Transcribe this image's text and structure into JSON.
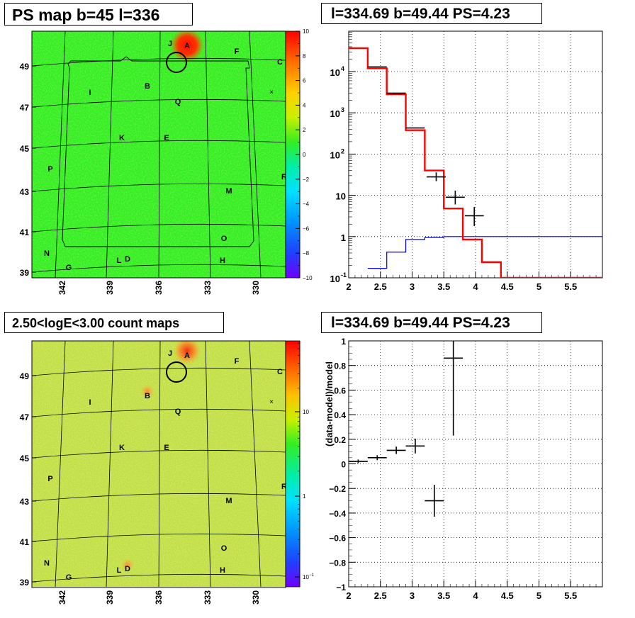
{
  "titles": {
    "map_top": "PS map b=45 l=336",
    "spectrum": "l=334.69 b=49.44 PS=4.23",
    "map_bottom": "2.50<logE<3.00 count maps",
    "residual": "l=334.69 b=49.44 PS=4.23"
  },
  "colors": {
    "model_red": "#ff0000",
    "background_blue": "#0000ff",
    "map_green": "#33ee22",
    "count_map_bg": "#bfe04a",
    "source_red": "#ff2200",
    "grid_black": "#000000"
  },
  "source_labels": [
    "J",
    "A",
    "F",
    "C",
    "I",
    "B",
    "Q",
    "K",
    "E",
    "P",
    "R",
    "M",
    "O",
    "N",
    "G",
    "L",
    "D",
    "H"
  ],
  "map_axes": {
    "lon_ticks": [
      "342",
      "339",
      "336",
      "333",
      "330"
    ],
    "lat_ticks": [
      "49",
      "47",
      "45",
      "43",
      "41",
      "39"
    ]
  },
  "colorbar_top": {
    "scale": "linear",
    "ticks": [
      "10",
      "8",
      "6",
      "4",
      "2",
      "0",
      "−2",
      "−4",
      "−6",
      "−8",
      "−10"
    ]
  },
  "colorbar_bottom": {
    "scale": "log",
    "ticks": [
      "10",
      "1",
      "10"
    ],
    "tick_exponent": "−1"
  },
  "chart_data": [
    {
      "type": "map",
      "panel": "PS map",
      "x_ticks": [
        342,
        339,
        336,
        333,
        330
      ],
      "y_ticks": [
        49,
        47,
        45,
        43,
        41,
        39
      ],
      "color_range": [
        -10,
        10
      ],
      "marked_source": "A"
    },
    {
      "type": "line",
      "panel": "spectrum",
      "yscale": "log",
      "xlim": [
        2,
        6
      ],
      "ylim": [
        0.1,
        50000
      ],
      "x_ticks": [
        2,
        2.5,
        3,
        3.5,
        4,
        4.5,
        5,
        5.5
      ],
      "y_ticks": [
        "10^-1",
        "1",
        "10",
        "10^2",
        "10^3",
        "10^4"
      ],
      "grid": true,
      "data_points": [
        {
          "x": 2.45,
          "y": 13000,
          "xerr": 0.15
        },
        {
          "x": 2.75,
          "y": 3000,
          "xerr": 0.15
        },
        {
          "x": 3.05,
          "y": 430,
          "xerr": 0.15
        },
        {
          "x": 3.38,
          "y": 28,
          "xerr": 0.15,
          "yerr": [
            22,
            36
          ]
        },
        {
          "x": 3.68,
          "y": 9,
          "xerr": 0.15,
          "yerr": [
            6,
            13
          ]
        },
        {
          "x": 3.98,
          "y": 3.2,
          "xerr": 0.15,
          "yerr": [
            1.8,
            5.2
          ]
        }
      ],
      "model_total": {
        "edges": [
          2.0,
          2.3,
          2.6,
          2.9,
          3.2,
          3.5,
          3.8,
          4.1,
          4.4,
          6.0
        ],
        "values": [
          37000,
          12000,
          2800,
          380,
          40,
          4.8,
          0.85,
          0.24,
          0.1
        ]
      },
      "model_background": {
        "edges": [
          2.3,
          2.6,
          2.9,
          3.2,
          3.5,
          6.0
        ],
        "values": [
          0.17,
          0.42,
          0.85,
          0.95,
          1.0
        ]
      }
    },
    {
      "type": "map",
      "panel": "count map",
      "x_ticks": [
        342,
        339,
        336,
        333,
        330
      ],
      "y_ticks": [
        49,
        47,
        45,
        43,
        41,
        39
      ],
      "color_scale": "log",
      "color_range": [
        0.07,
        30
      ],
      "marked_source": "A"
    },
    {
      "type": "scatter",
      "panel": "residual",
      "ylabel": "(data-model)/model",
      "xlim": [
        2,
        6
      ],
      "ylim": [
        -1,
        1
      ],
      "x_ticks": [
        2,
        2.5,
        3,
        3.5,
        4,
        4.5,
        5,
        5.5
      ],
      "y_ticks": [
        1,
        0.8,
        0.6,
        0.4,
        0.2,
        0,
        -0.2,
        -0.4,
        -0.6,
        -0.8,
        -1
      ],
      "grid": true,
      "data_points": [
        {
          "x": 2.15,
          "y": 0.02,
          "xerr": 0.15,
          "yerr": 0.015
        },
        {
          "x": 2.45,
          "y": 0.05,
          "xerr": 0.15,
          "yerr": 0.02
        },
        {
          "x": 2.75,
          "y": 0.11,
          "xerr": 0.15,
          "yerr": 0.03
        },
        {
          "x": 3.05,
          "y": 0.145,
          "xerr": 0.15,
          "yerr": 0.06
        },
        {
          "x": 3.35,
          "y": -0.3,
          "xerr": 0.15,
          "yerr": 0.13
        },
        {
          "x": 3.65,
          "y": 0.86,
          "xerr": 0.15,
          "yerr": 0.63
        }
      ]
    }
  ]
}
